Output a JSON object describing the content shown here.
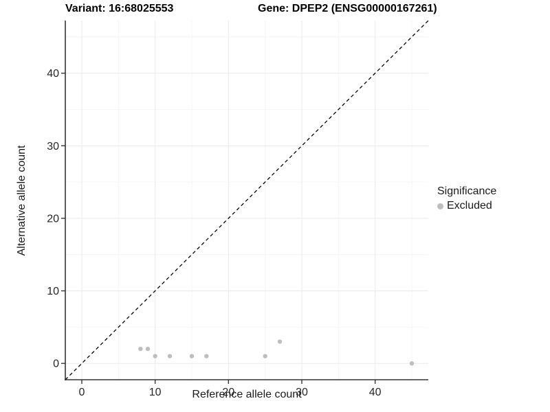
{
  "titles": {
    "variant": "Variant: 16:68025553",
    "gene": "Gene: DPEP2 (ENSG00000167261)"
  },
  "chart_data": {
    "type": "scatter",
    "xlabel": "Reference allele count",
    "ylabel": "Alternative allele count",
    "xlim": [
      -2.25,
      47.25
    ],
    "ylim": [
      -2.25,
      47.25
    ],
    "x_ticks": [
      0,
      10,
      20,
      30,
      40
    ],
    "y_ticks": [
      0,
      10,
      20,
      30,
      40
    ],
    "x_minor_ticks": [
      5,
      15,
      25,
      35,
      45
    ],
    "y_minor_ticks": [
      5,
      15,
      25,
      35,
      45
    ],
    "grid": "major+minor, light gray on white, no top/right border",
    "identity_line": {
      "slope": 1,
      "intercept": 0,
      "style": "dashed",
      "color": "#000000"
    },
    "series": [
      {
        "name": "Excluded",
        "color": "#bebebe",
        "points": [
          [
            8,
            2
          ],
          [
            9,
            2
          ],
          [
            10,
            1
          ],
          [
            12,
            1
          ],
          [
            15,
            1
          ],
          [
            17,
            1
          ],
          [
            25,
            1
          ],
          [
            27,
            3
          ],
          [
            45,
            0
          ]
        ]
      }
    ],
    "legend": {
      "title": "Significance",
      "position": "right",
      "entries": [
        {
          "label": "Excluded",
          "color": "#bebebe"
        }
      ]
    }
  },
  "style": {
    "point_color": "#bebebe",
    "grid_major_color": "#e9e9e9",
    "grid_minor_color": "#f4f4f4",
    "axis_line_color": "#333333",
    "tick_label_color": "#262626"
  }
}
